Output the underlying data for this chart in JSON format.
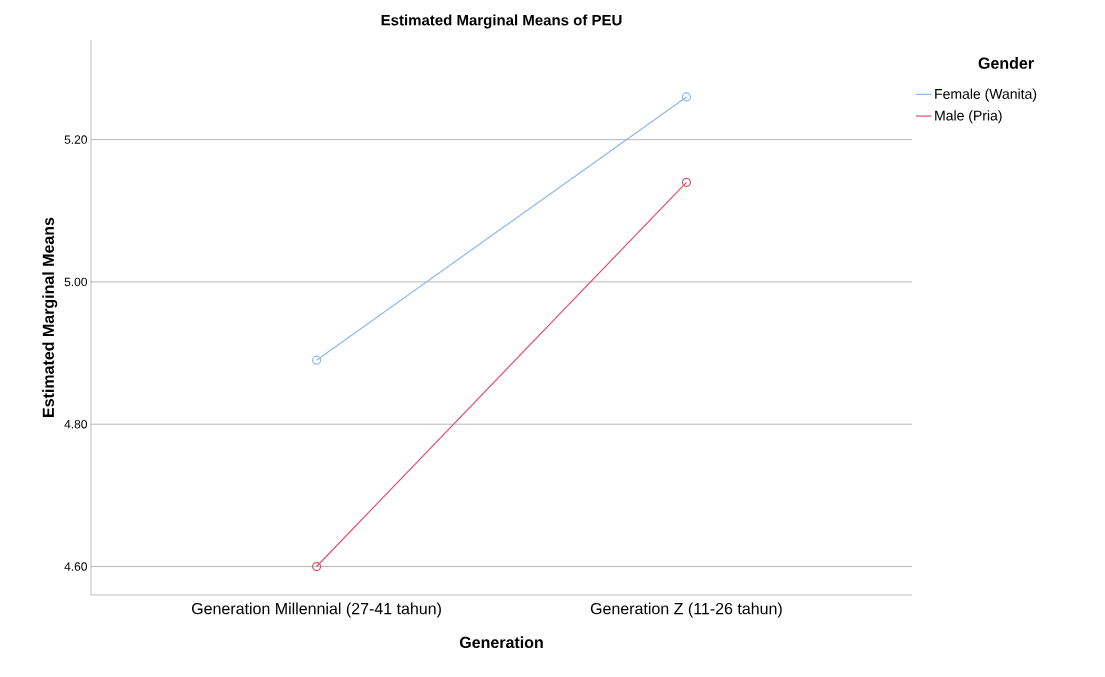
{
  "chart_data": {
    "type": "line",
    "title": "Estimated Marginal Means of PEU",
    "xlabel": "Generation",
    "ylabel": "Estimated Marginal Means",
    "legend_title": "Gender",
    "categories": [
      "Generation Millennial (27-41 tahun)",
      "Generation Z (11-26 tahun)"
    ],
    "series": [
      {
        "name": "Female (Wanita)",
        "color": "#8db8ee",
        "values": [
          4.89,
          5.26
        ]
      },
      {
        "name": "Male (Pria)",
        "color": "#e3506f",
        "values": [
          4.6,
          5.14
        ]
      }
    ],
    "ylim": [
      4.56,
      5.34
    ],
    "yticks": [
      {
        "value": 4.6,
        "label": "4.60"
      },
      {
        "value": 4.8,
        "label": "4.80"
      },
      {
        "value": 5.0,
        "label": "5.00"
      },
      {
        "value": 5.2,
        "label": "5.20"
      }
    ],
    "grid": "y",
    "legend": "top right",
    "marker": "circle",
    "line_style": "solid"
  }
}
